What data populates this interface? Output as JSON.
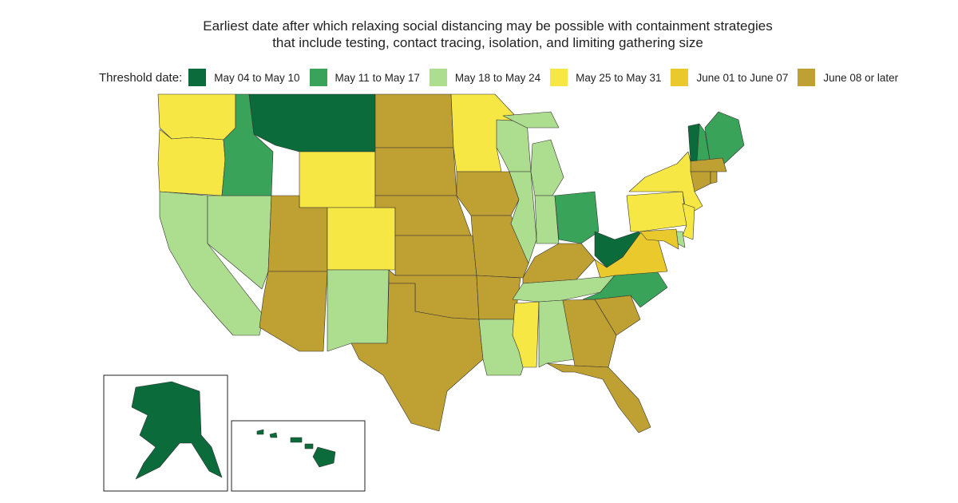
{
  "title": {
    "line1": "Earliest date after which relaxing social distancing may be possible with containment strategies",
    "line2": "that include testing, contact tracing, isolation, and limiting gathering size"
  },
  "legend": {
    "label": "Threshold date:",
    "items": [
      {
        "label": "May 04 to May 10",
        "color": "#0b6b3a"
      },
      {
        "label": "May 11 to May 17",
        "color": "#3aa35a"
      },
      {
        "label": "May 18 to May 24",
        "color": "#addd8e"
      },
      {
        "label": "May 25 to May 31",
        "color": "#f6e744"
      },
      {
        "label": "June 01 to June 07",
        "color": "#e9c92c"
      },
      {
        "label": "June 08 or later",
        "color": "#bfa032"
      }
    ]
  },
  "states": {
    "WA": 3,
    "OR": 3,
    "CA": 2,
    "NV": 2,
    "ID": 1,
    "MT": 0,
    "WY": 3,
    "UT": 5,
    "CO": 3,
    "AZ": 5,
    "NM": 2,
    "ND": 5,
    "SD": 5,
    "NE": 5,
    "KS": 5,
    "OK": 5,
    "TX": 5,
    "MN": 3,
    "IA": 5,
    "MO": 5,
    "AR": 5,
    "LA": 2,
    "WI": 2,
    "IL": 2,
    "MI": 2,
    "IN": 2,
    "OH": 1,
    "KY": 5,
    "TN": 2,
    "MS": 3,
    "AL": 2,
    "GA": 5,
    "FL": 5,
    "SC": 5,
    "NC": 1,
    "VA": 4,
    "WV": 0,
    "PA": 3,
    "NY": 3,
    "VT": 0,
    "NH": 1,
    "ME": 1,
    "MA": 5,
    "CT": 5,
    "RI": 5,
    "NJ": 3,
    "DE": 2,
    "MD": 4,
    "AK": 0,
    "HI": 0
  }
}
